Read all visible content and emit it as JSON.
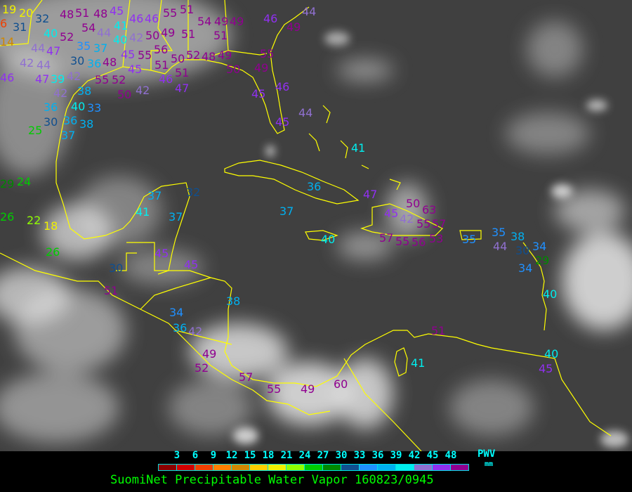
{
  "title": "SuomiNet Precipitable Water Vapor 160823/0945",
  "legend": {
    "unit_top": "PWV",
    "unit_bottom": "mm",
    "ticks": [
      "3",
      "6",
      "9",
      "12",
      "15",
      "18",
      "21",
      "24",
      "27",
      "30",
      "33",
      "36",
      "39",
      "42",
      "45",
      "48"
    ],
    "colors": [
      "#8b0000",
      "#d00000",
      "#f04000",
      "#ff8000",
      "#d08800",
      "#ffd000",
      "#f0f000",
      "#90ff00",
      "#00cc00",
      "#008800",
      "#104f8f",
      "#2090ff",
      "#00b0f0",
      "#00eeee",
      "#9070d0",
      "#9030f0",
      "#900090"
    ]
  },
  "map": {
    "background": "#404040",
    "coastline_color": "#ffff00",
    "stations": [
      "19",
      "20",
      "6",
      "32",
      "31",
      "14",
      "40",
      "52",
      "44",
      "47",
      "42",
      "44",
      "46",
      "47",
      "39",
      "42",
      "35",
      "37",
      "30",
      "36",
      "48",
      "55",
      "52",
      "38",
      "42",
      "40",
      "36",
      "36",
      "33",
      "30",
      "37",
      "38",
      "25",
      "42",
      "48",
      "51",
      "54",
      "48",
      "44",
      "41",
      "40",
      "45",
      "46",
      "46",
      "42",
      "45",
      "50",
      "49",
      "45",
      "55",
      "56",
      "51",
      "50",
      "55",
      "51",
      "51",
      "54",
      "49",
      "49",
      "51",
      "50",
      "51",
      "52",
      "48",
      "49",
      "46",
      "47",
      "50",
      "49",
      "55",
      "46",
      "49",
      "44",
      "46",
      "45",
      "44",
      "45",
      "29",
      "24",
      "26",
      "22",
      "18",
      "26",
      "37",
      "41",
      "37",
      "32",
      "45",
      "45",
      "30",
      "51",
      "38",
      "36",
      "37",
      "41",
      "47",
      "45",
      "42",
      "50",
      "63",
      "55",
      "57",
      "57",
      "55",
      "56",
      "53",
      "40",
      "35",
      "35",
      "38",
      "44",
      "30",
      "34",
      "29",
      "34",
      "34",
      "36",
      "42",
      "49",
      "52",
      "57",
      "55",
      "49",
      "60",
      "51",
      "41",
      "40",
      "40",
      "45"
    ]
  }
}
